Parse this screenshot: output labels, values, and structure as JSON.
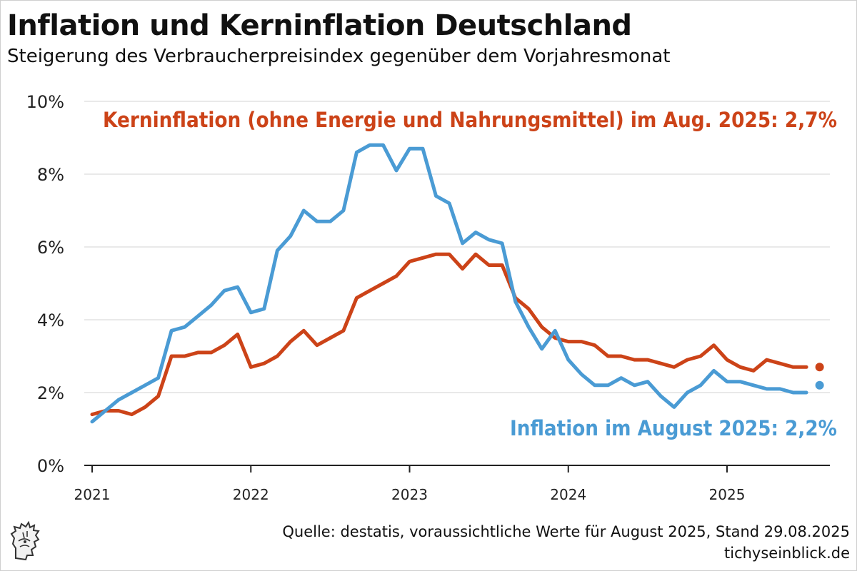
{
  "title": "Inflation und Kerninflation Deutschland",
  "subtitle": "Steigerung des Verbraucherpreisindex gegenüber dem Vorjahresmonat",
  "source": "Quelle: destatis, voraussichtliche Werte für August 2025, Stand 29.08.2025",
  "site": "tichyseinblick.de",
  "colors": {
    "inflation": "#4a9bd4",
    "core": "#cc4318",
    "grid": "#e2e2e2",
    "axis": "#222222"
  },
  "chart_data": {
    "type": "line",
    "xlabel": "",
    "ylabel": "",
    "ylim": [
      0,
      10
    ],
    "y_ticks": [
      {
        "value": 0,
        "label": "0%"
      },
      {
        "value": 2,
        "label": "2%"
      },
      {
        "value": 4,
        "label": "4%"
      },
      {
        "value": 6,
        "label": "6%"
      },
      {
        "value": 8,
        "label": "8%"
      },
      {
        "value": 10,
        "label": "10%"
      }
    ],
    "x_ticks": [
      {
        "value": "2021-01",
        "label": "2021"
      },
      {
        "value": "2022-01",
        "label": "2022"
      },
      {
        "value": "2023-01",
        "label": "2023"
      },
      {
        "value": "2024-01",
        "label": "2024"
      },
      {
        "value": "2025-01",
        "label": "2025"
      }
    ],
    "grid": true,
    "x": [
      "2021-01",
      "2021-02",
      "2021-03",
      "2021-04",
      "2021-05",
      "2021-06",
      "2021-07",
      "2021-08",
      "2021-09",
      "2021-10",
      "2021-11",
      "2021-12",
      "2022-01",
      "2022-02",
      "2022-03",
      "2022-04",
      "2022-05",
      "2022-06",
      "2022-07",
      "2022-08",
      "2022-09",
      "2022-10",
      "2022-11",
      "2022-12",
      "2023-01",
      "2023-02",
      "2023-03",
      "2023-04",
      "2023-05",
      "2023-06",
      "2023-07",
      "2023-08",
      "2023-09",
      "2023-10",
      "2023-11",
      "2023-12",
      "2024-01",
      "2024-02",
      "2024-03",
      "2024-04",
      "2024-05",
      "2024-06",
      "2024-07",
      "2024-08",
      "2024-09",
      "2024-10",
      "2024-11",
      "2024-12",
      "2025-01",
      "2025-02",
      "2025-03",
      "2025-04",
      "2025-05",
      "2025-06",
      "2025-07",
      "2025-08"
    ],
    "series": [
      {
        "key": "core",
        "values": [
          1.4,
          1.5,
          1.5,
          1.4,
          1.6,
          1.9,
          3.0,
          3.0,
          3.1,
          3.1,
          3.3,
          3.6,
          2.7,
          2.8,
          3.0,
          3.4,
          3.7,
          3.3,
          3.5,
          3.7,
          4.6,
          4.8,
          5.0,
          5.2,
          5.6,
          5.7,
          5.8,
          5.8,
          5.4,
          5.8,
          5.5,
          5.5,
          4.6,
          4.3,
          3.8,
          3.5,
          3.4,
          3.4,
          3.3,
          3.0,
          3.0,
          2.9,
          2.9,
          2.8,
          2.7,
          2.9,
          3.0,
          3.3,
          2.9,
          2.7,
          2.6,
          2.9,
          2.8,
          2.7,
          2.7,
          2.7
        ],
        "label": "Kerninflation (ohne Energie und Nahrungsmittel) im Aug. 2025: 2,7%",
        "last_value": 2.7
      },
      {
        "key": "inflation",
        "values": [
          1.2,
          1.5,
          1.8,
          2.0,
          2.2,
          2.4,
          3.7,
          3.8,
          4.1,
          4.4,
          4.8,
          4.9,
          4.2,
          4.3,
          5.9,
          6.3,
          7.0,
          6.7,
          6.7,
          7.0,
          8.6,
          8.8,
          8.8,
          8.1,
          8.7,
          8.7,
          7.4,
          7.2,
          6.1,
          6.4,
          6.2,
          6.1,
          4.5,
          3.8,
          3.2,
          3.7,
          2.9,
          2.5,
          2.2,
          2.2,
          2.4,
          2.2,
          2.3,
          1.9,
          1.6,
          2.0,
          2.2,
          2.6,
          2.3,
          2.3,
          2.2,
          2.1,
          2.1,
          2.0,
          2.0,
          2.2
        ],
        "label": "Inflation im August 2025: 2,2%",
        "last_value": 2.2
      }
    ]
  }
}
